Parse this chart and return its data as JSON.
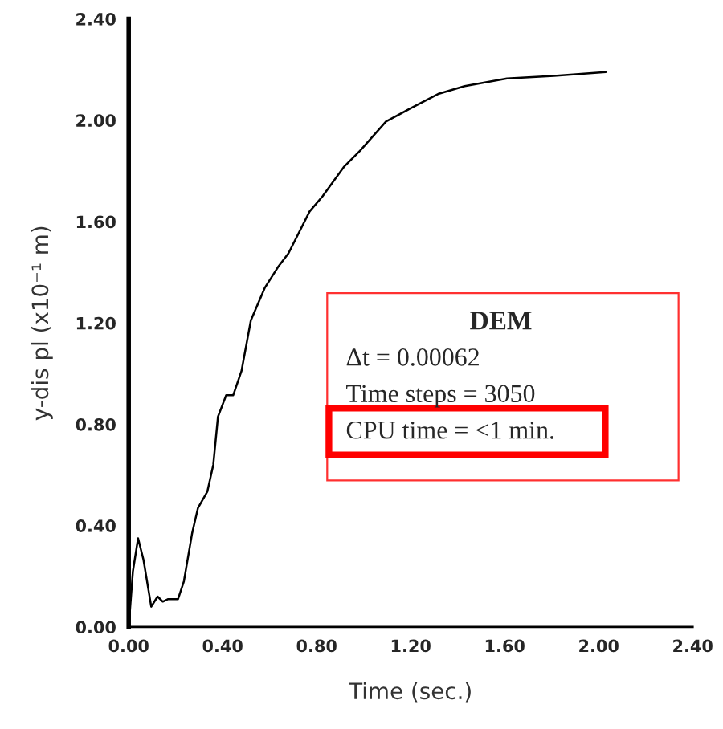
{
  "chart_data": {
    "type": "line",
    "xlabel": "Time (sec.)",
    "ylabel": "y-dis pl (x10⁻¹ m)",
    "x": [
      0,
      0.018,
      0.04,
      0.063,
      0.096,
      0.123,
      0.145,
      0.168,
      0.21,
      0.235,
      0.27,
      0.295,
      0.335,
      0.36,
      0.38,
      0.415,
      0.445,
      0.48,
      0.52,
      0.58,
      0.635,
      0.68,
      0.77,
      0.825,
      0.915,
      0.985,
      1.095,
      1.195,
      1.32,
      1.43,
      1.61,
      1.81,
      2.03
    ],
    "series": [
      {
        "color": "#000000",
        "values": [
          0,
          0.22,
          0.35,
          0.265,
          0.08,
          0.12,
          0.1,
          0.11,
          0.11,
          0.18,
          0.37,
          0.47,
          0.535,
          0.64,
          0.83,
          0.915,
          0.915,
          1.01,
          1.21,
          1.34,
          1.42,
          1.475,
          1.64,
          1.7,
          1.815,
          1.88,
          1.995,
          2.045,
          2.105,
          2.135,
          2.165,
          2.175,
          2.19
        ]
      }
    ],
    "xlim": [
      0,
      2.4
    ],
    "ylim": [
      0,
      2.4
    ],
    "xticks": [
      {
        "value": 0,
        "label": "0.00"
      },
      {
        "value": 0.4,
        "label": "0.40"
      },
      {
        "value": 0.8,
        "label": "0.80"
      },
      {
        "value": 1.2,
        "label": "1.20"
      },
      {
        "value": 1.6,
        "label": "1.60"
      },
      {
        "value": 2.0,
        "label": "2.00"
      },
      {
        "value": 2.4,
        "label": "2.40"
      }
    ],
    "yticks": [
      {
        "value": 0,
        "label": "0.00"
      },
      {
        "value": 0.4,
        "label": "0.40"
      },
      {
        "value": 0.8,
        "label": "0.80"
      },
      {
        "value": 1.2,
        "label": "1.20"
      },
      {
        "value": 1.6,
        "label": "1.60"
      },
      {
        "value": 2.0,
        "label": "2.00"
      },
      {
        "value": 2.4,
        "label": "2.40"
      }
    ],
    "grid": false,
    "legend": false,
    "marker": "none",
    "line_style": "solid",
    "annotations": [
      "DEM",
      "Δt = 0.00062",
      "Time steps = 3050",
      "CPU time = <1 min."
    ]
  }
}
